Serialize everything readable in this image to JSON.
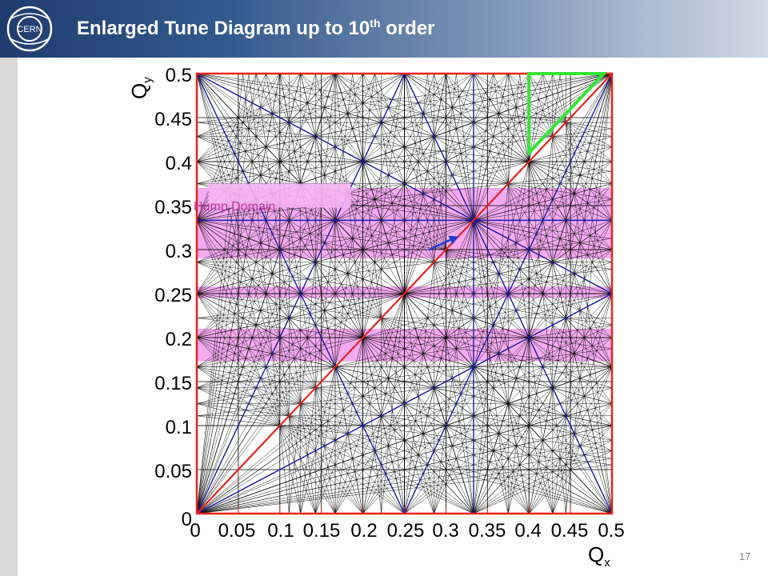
{
  "slide": {
    "title": "Enlarged Tune Diagram up to 10",
    "title_sup": "th",
    "title_end": " order",
    "page_number": "17",
    "logo_text": "CERN"
  },
  "colors": {
    "header_dark": "#1f3c6e",
    "plot_frame": "#e8231d",
    "diagonal": "#e8231d",
    "low_order_lines": "#1a1aa8",
    "resonance_lines": "#000000",
    "hump_band": "#f39cf0",
    "highlight_triangle": "#33e633"
  },
  "chart_data": {
    "type": "line",
    "xlabel": "Q",
    "xlabel_sub": "x",
    "ylabel": "Q",
    "ylabel_sub": "y",
    "xlim": [
      0,
      0.5
    ],
    "ylim": [
      0,
      0.5
    ],
    "x_ticks": [
      "0",
      "0.05",
      "0.1",
      "0.15",
      "0.2",
      "0.25",
      "0.3",
      "0.35",
      "0.4",
      "0.45",
      "0.5"
    ],
    "y_ticks": [
      "0",
      "0.05",
      "0.1",
      "0.15",
      "0.2",
      "0.25",
      "0.3",
      "0.35",
      "0.4",
      "0.45",
      "0.5"
    ],
    "max_resonance_order": 10,
    "diagonal": [
      [
        0,
        0
      ],
      [
        0.5,
        0.5
      ]
    ],
    "blue_lines": [
      [
        [
          0,
          0
        ],
        [
          0.25,
          0.5
        ]
      ],
      [
        [
          0.25,
          0.5
        ],
        [
          0.5,
          0
        ]
      ],
      [
        [
          0,
          0.5
        ],
        [
          0.5,
          0.25
        ]
      ],
      [
        [
          0,
          0
        ],
        [
          0.5,
          0.25
        ]
      ],
      [
        [
          0,
          0.5
        ],
        [
          0.25,
          0
        ]
      ],
      [
        [
          0.25,
          0
        ],
        [
          0.5,
          0.5
        ]
      ],
      [
        [
          0,
          0.3333
        ],
        [
          0.5,
          0.3333
        ]
      ],
      [
        [
          0.3333,
          0
        ],
        [
          0.3333,
          0.5
        ]
      ]
    ],
    "hump_bands": [
      {
        "y_range": [
          0.29,
          0.37
        ]
      },
      {
        "y_range": [
          0.245,
          0.258
        ]
      },
      {
        "y_range": [
          0.173,
          0.21
        ]
      }
    ],
    "annotation": {
      "text": "Hump Domain",
      "x": 0.08,
      "y": 0.35
    },
    "arrow": {
      "from": [
        0.28,
        0.3
      ],
      "to": [
        0.315,
        0.315
      ]
    },
    "highlight_triangle": [
      [
        0.4,
        0.5
      ],
      [
        0.49,
        0.5
      ],
      [
        0.4,
        0.41
      ]
    ]
  }
}
